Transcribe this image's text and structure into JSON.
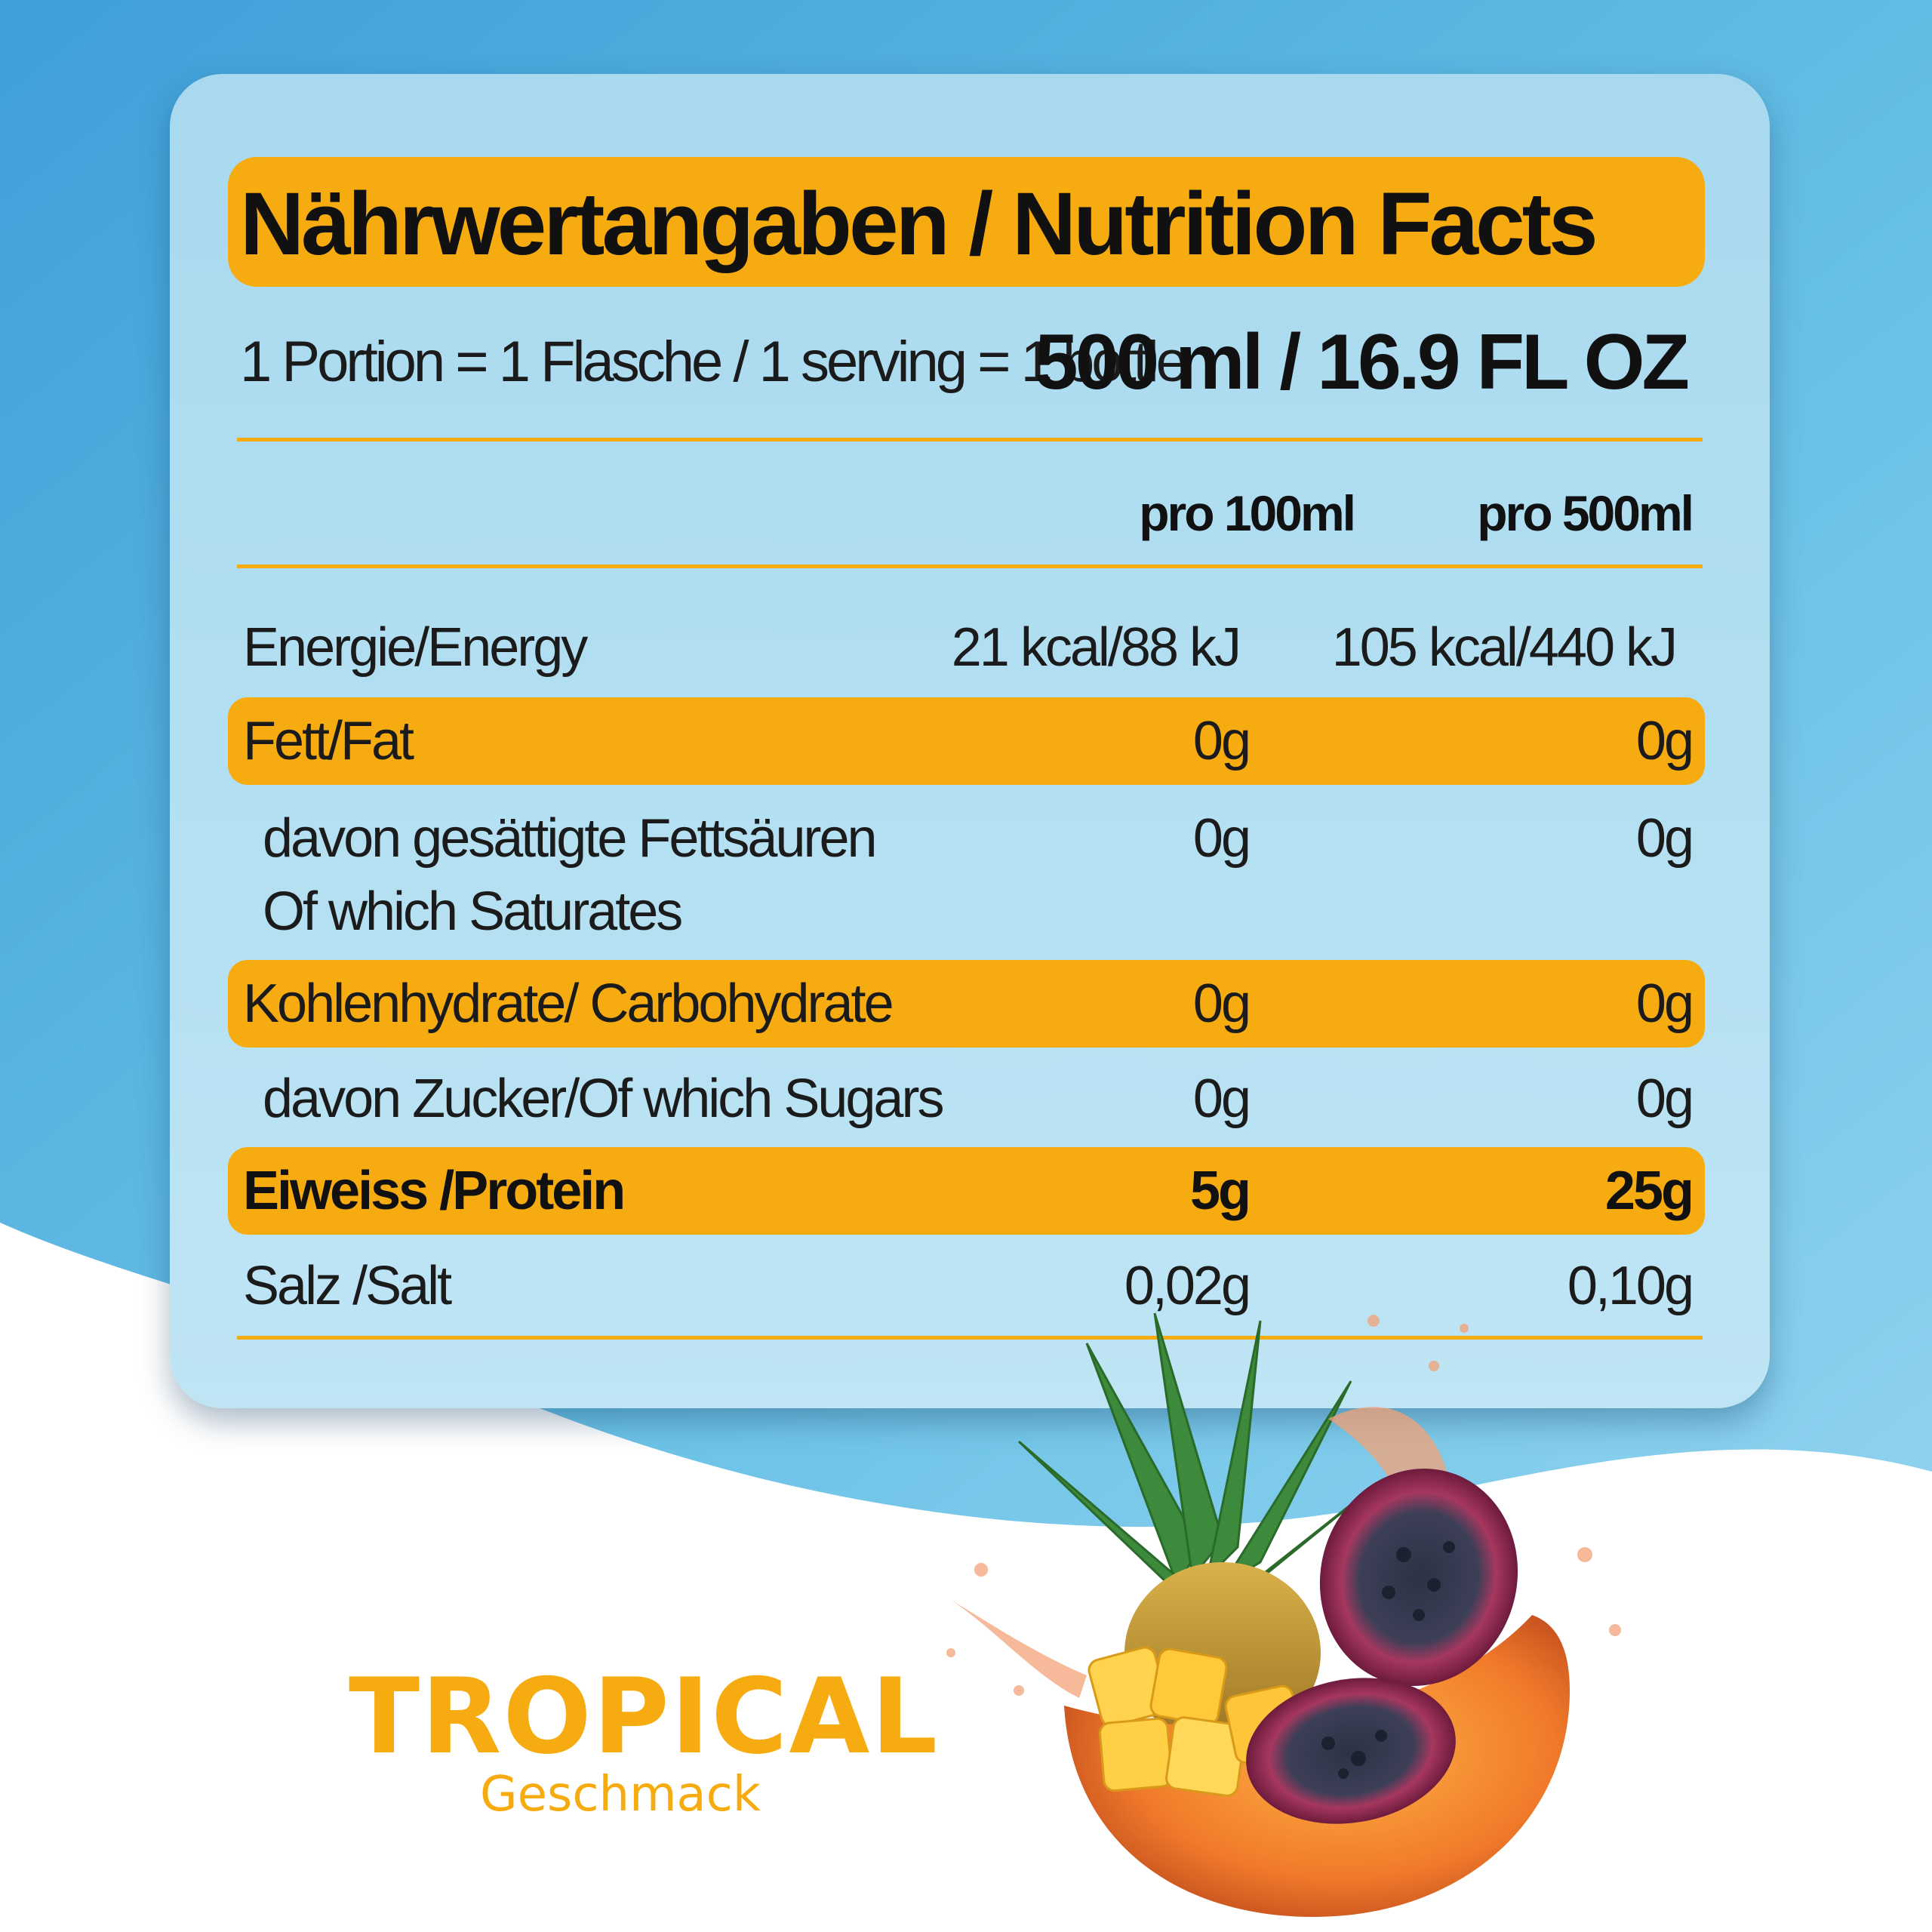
{
  "title": "Nährwertangaben / Nutrition Facts",
  "serving_text": "1 Portion = 1 Flasche / 1 serving = 1 bottle",
  "serving_amount": "500 ml / 16.9 FL OZ",
  "columns": [
    "pro 100ml",
    "pro 500ml"
  ],
  "rows": [
    {
      "label": "Energie/Energy",
      "per100": "21 kcal/88 kJ",
      "per500": "105 kcal/440 kJ"
    },
    {
      "label": "Fett/Fat",
      "per100": "0g",
      "per500": "0g"
    },
    {
      "label": "davon gesättigte Fettsäuren",
      "label2": "Of which Saturates",
      "per100": "0g",
      "per500": "0g"
    },
    {
      "label": "Kohlenhydrate/ Carbohydrate",
      "per100": "0g",
      "per500": "0g"
    },
    {
      "label": "davon Zucker/Of which Sugars",
      "per100": "0g",
      "per500": "0g"
    },
    {
      "label": "Eiweiss /Protein",
      "per100": "5g",
      "per500": "25g"
    },
    {
      "label": "Salz /Salt",
      "per100": "0,02g",
      "per500": "0,10g"
    }
  ],
  "brand": "TROPICAL",
  "brand_sub": "Geschmack",
  "colors": {
    "accent": "#f6ac10",
    "sky": "#5fb8e2",
    "panel": "#b2def1"
  },
  "illustration": "tropical-fruit-splash-illustration"
}
